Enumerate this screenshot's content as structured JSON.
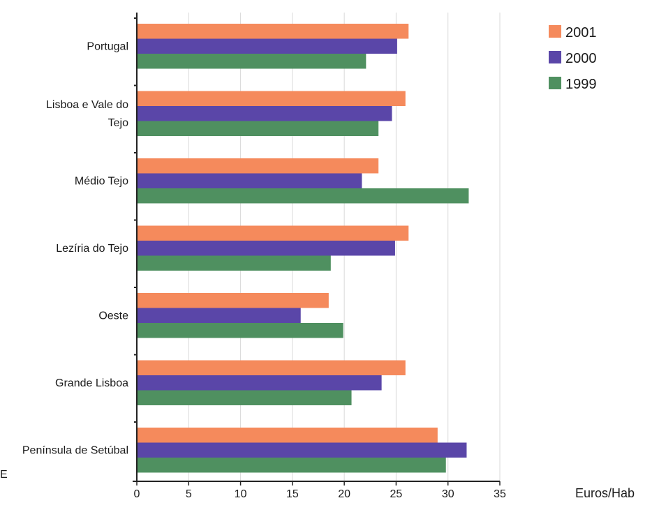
{
  "chart_data": {
    "type": "bar",
    "orientation": "horizontal",
    "categories": [
      "Portugal",
      "Lisboa e Vale do Tejo",
      "Médio Tejo",
      "Lezíria do Tejo",
      "Oeste",
      "Grande Lisboa",
      "Península de Setúbal"
    ],
    "category_display": [
      [
        "Portugal"
      ],
      [
        "Lisboa e Vale do",
        "Tejo"
      ],
      [
        "Médio Tejo"
      ],
      [
        "Lezíria do Tejo"
      ],
      [
        "Oeste"
      ],
      [
        "Grande Lisboa"
      ],
      [
        "Península de Setúbal"
      ]
    ],
    "series": [
      {
        "name": "2001",
        "color": "#f58a5c",
        "values": [
          26.2,
          25.9,
          23.3,
          26.2,
          18.5,
          25.9,
          29.0
        ]
      },
      {
        "name": "2000",
        "color": "#5a46a8",
        "values": [
          25.1,
          24.6,
          21.7,
          24.9,
          15.8,
          23.6,
          31.8
        ]
      },
      {
        "name": "1999",
        "color": "#4f9060",
        "values": [
          22.1,
          23.3,
          32.0,
          18.7,
          19.9,
          20.7,
          29.8
        ]
      }
    ],
    "xlim": [
      0,
      35
    ],
    "x_ticks": [
      "0",
      "5",
      "10",
      "15",
      "20",
      "25",
      "30",
      "35"
    ],
    "xlabel": "Euros/Hab",
    "ylabel": "",
    "title": "",
    "legend_position": "top-right",
    "grid": "vertical",
    "margin_text": "E"
  }
}
